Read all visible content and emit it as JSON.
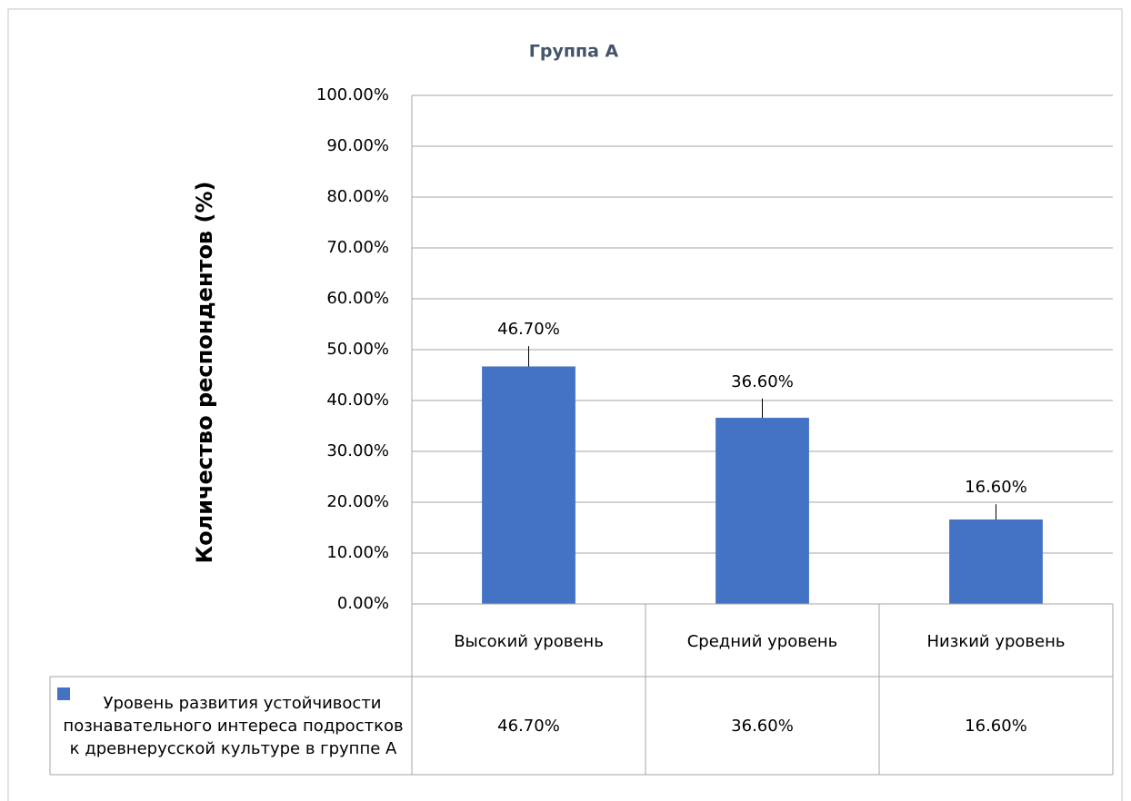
{
  "chart_data": {
    "type": "bar",
    "title": "Группа А",
    "y_axis_label": "Количество респондентов (%)",
    "categories": [
      "Высокий уровень",
      "Средний уровень",
      "Низкий уровень"
    ],
    "series": [
      {
        "name": "Уровень развития устойчивости познавательного интереса подростков к древнерусской культуре в группе А",
        "color": "#4472c4",
        "values": [
          46.7,
          36.6,
          16.6
        ],
        "value_labels": [
          "46.70%",
          "36.60%",
          "16.60%"
        ],
        "errors": [
          4,
          3.8,
          3
        ]
      }
    ],
    "ylim": [
      0,
      100
    ],
    "yticks": [
      {
        "value": 0,
        "label": "0.00%"
      },
      {
        "value": 10,
        "label": "10.00%"
      },
      {
        "value": 20,
        "label": "20.00%"
      },
      {
        "value": 30,
        "label": "30.00%"
      },
      {
        "value": 40,
        "label": "40.00%"
      },
      {
        "value": 50,
        "label": "50.00%"
      },
      {
        "value": 60,
        "label": "60.00%"
      },
      {
        "value": 70,
        "label": "70.00%"
      },
      {
        "value": 80,
        "label": "80.00%"
      },
      {
        "value": 90,
        "label": "90.00%"
      },
      {
        "value": 100,
        "label": "100.00%"
      }
    ],
    "grid": true,
    "data_table": true
  }
}
